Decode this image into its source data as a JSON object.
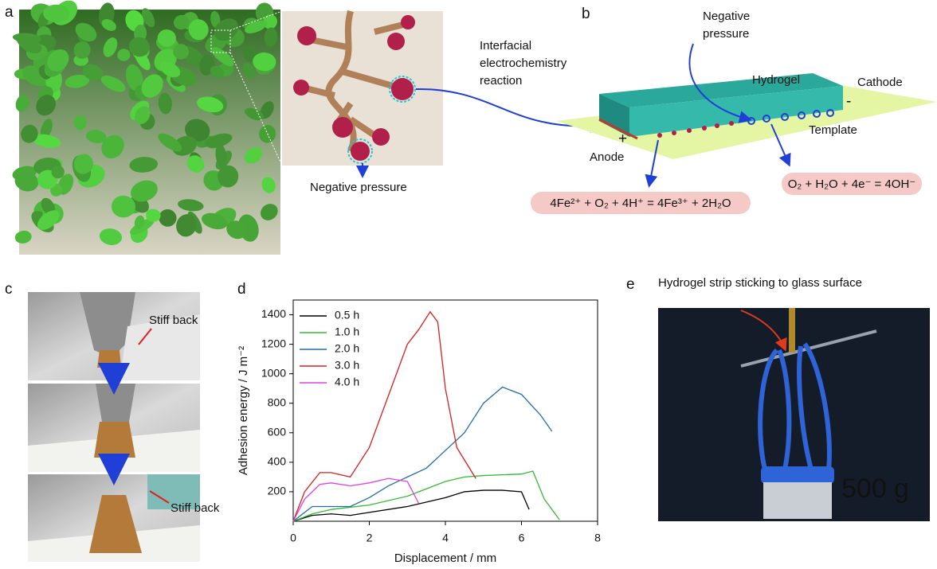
{
  "panels": {
    "a": {
      "label": "a",
      "callout": "Negative pressure"
    },
    "b": {
      "label": "b",
      "reaction": [
        "Interfacial",
        "electrochemistry",
        "reaction"
      ],
      "pressure": [
        "Negative",
        "pressure"
      ],
      "hydrogel": "Hydrogel",
      "cathode": "Cathode",
      "minus": "-",
      "plus": "+",
      "anode": "Anode",
      "template": "Template",
      "anode_equation": "4Fe²⁺ + O₂ + 4H⁺ = 4Fe³⁺ + 2H₂O",
      "cathode_equation": "O₂ + H₂O + 4e⁻ = 4OH⁻"
    },
    "c": {
      "label": "c",
      "top_note": "Stiff back",
      "bottom_note": "Stiff back"
    },
    "d": {
      "label": "d"
    },
    "e": {
      "label": "e",
      "caption": "Hydrogel strip sticking to glass surface",
      "weight": "500 g"
    }
  },
  "chart_data": {
    "type": "line",
    "x_label": "Displacement / mm",
    "y_label": "Adhesion energy / J m⁻²",
    "xlim": [
      0,
      8
    ],
    "ylim": [
      0,
      1500
    ],
    "xticks": [
      0,
      2,
      4,
      6,
      8
    ],
    "yticks": [
      200,
      400,
      600,
      800,
      1000,
      1200,
      1400
    ],
    "legend": "top-left",
    "series": [
      {
        "name": "0.5 h",
        "color": "#000000",
        "x": [
          0,
          0.5,
          1,
          1.5,
          2,
          3,
          4,
          4.5,
          5,
          5.5,
          6,
          6.2
        ],
        "values": [
          0,
          40,
          50,
          40,
          60,
          100,
          160,
          200,
          210,
          210,
          200,
          80
        ]
      },
      {
        "name": "1.0 h",
        "color": "#33bb33",
        "x": [
          0,
          0.5,
          1,
          2,
          3,
          4,
          4.5,
          5,
          6,
          6.3,
          6.6,
          7
        ],
        "values": [
          0,
          50,
          80,
          110,
          170,
          270,
          300,
          310,
          320,
          340,
          150,
          10
        ]
      },
      {
        "name": "2.0 h",
        "color": "#1f6fa6",
        "x": [
          0,
          0.5,
          1,
          1.5,
          2,
          2.5,
          3,
          3.5,
          4,
          4.5,
          5,
          5.5,
          6,
          6.5,
          6.8
        ],
        "values": [
          0,
          100,
          100,
          100,
          160,
          240,
          300,
          360,
          480,
          600,
          800,
          910,
          860,
          720,
          610
        ]
      },
      {
        "name": "3.0 h",
        "color": "#d62020",
        "x": [
          0,
          0.3,
          0.7,
          1,
          1.5,
          2,
          2.5,
          3,
          3.3,
          3.6,
          3.8,
          4,
          4.3,
          4.8
        ],
        "values": [
          0,
          200,
          330,
          330,
          300,
          500,
          850,
          1200,
          1300,
          1420,
          1350,
          900,
          500,
          290
        ]
      },
      {
        "name": "4.0 h",
        "color": "#e040e0",
        "x": [
          0,
          0.3,
          0.7,
          1,
          1.5,
          2,
          2.5,
          3,
          3.3
        ],
        "values": [
          0,
          150,
          250,
          260,
          240,
          260,
          290,
          270,
          120
        ]
      }
    ]
  }
}
